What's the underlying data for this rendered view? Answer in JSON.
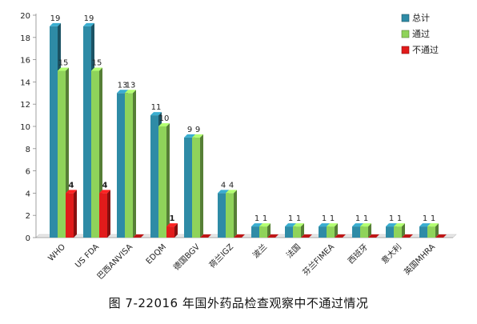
{
  "chart_data": {
    "type": "bar",
    "categories": [
      "WHO",
      "US FDA",
      "巴西ANVISA",
      "EDQM",
      "德国BGV",
      "荷兰IGZ",
      "波兰",
      "法国",
      "芬兰FIMEA",
      "西班牙",
      "意大利",
      "英国MHRA"
    ],
    "series": [
      {
        "name": "总计",
        "values": [
          19,
          19,
          13,
          11,
          9,
          4,
          1,
          1,
          1,
          1,
          1,
          1
        ],
        "color": "#2E8BA6"
      },
      {
        "name": "通过",
        "values": [
          15,
          15,
          13,
          10,
          9,
          4,
          1,
          1,
          1,
          1,
          1,
          1
        ],
        "color": "#8FD35A"
      },
      {
        "name": "不通过",
        "values": [
          4,
          4,
          0,
          1,
          0,
          0,
          0,
          0,
          0,
          0,
          0,
          0
        ],
        "color": "#E11B1B"
      }
    ],
    "ylim": [
      0,
      20
    ],
    "yticks": [
      0,
      2,
      4,
      6,
      8,
      10,
      12,
      14,
      16,
      18,
      20
    ],
    "legend_position": "top-right",
    "grid": false
  },
  "caption": "图 7-22016 年国外药品检查观察中不通过情况"
}
